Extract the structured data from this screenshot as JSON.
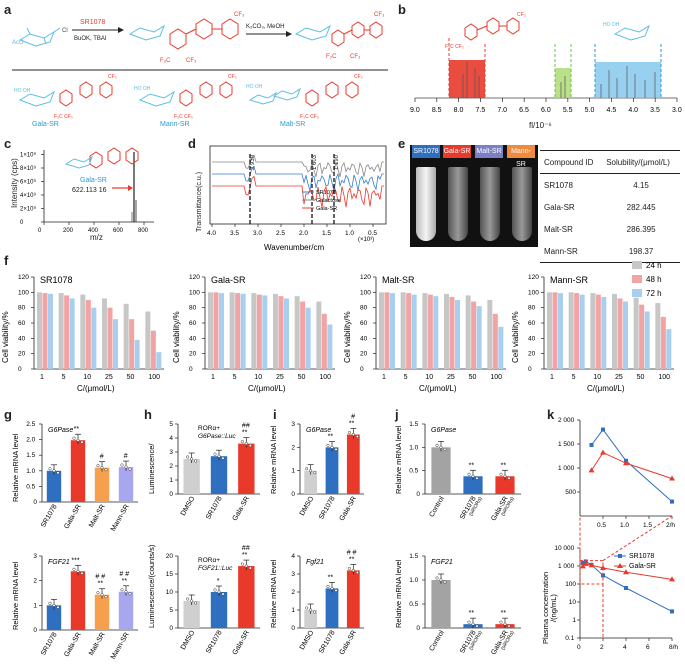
{
  "panels": {
    "a": "a",
    "b": "b",
    "c": "c",
    "d": "d",
    "e": "e",
    "f": "f",
    "g": "g",
    "h": "h",
    "i": "i",
    "j": "j",
    "k": "k"
  },
  "panel_a": {
    "reagent_top": "SR1078",
    "reagent_bottom": "BuOK, TBAI",
    "reagent2": "K₂CO₃, MeOH",
    "compounds": [
      "Gala-SR",
      "Mann-SR",
      "Malt-SR"
    ]
  },
  "panel_b": {
    "type": "nmr",
    "xlabel": "fl/10⁻⁶",
    "ticks": [
      "9.0",
      "8.5",
      "8.0",
      "7.5",
      "7.0",
      "6.5",
      "6.0",
      "5.5",
      "5.0",
      "4.5",
      "4.0",
      "3.5",
      "3.0"
    ]
  },
  "panel_c": {
    "ylabel": "Intensity (cps)",
    "xlabel": "m/z",
    "yticks": [
      "0",
      "2×10⁹",
      "4×10⁹",
      "6×10⁹",
      "8×10⁹",
      "1×10⁹"
    ],
    "xticks": [
      "0",
      "200",
      "400",
      "600",
      "800"
    ],
    "compound": "Gala-SR",
    "peak_label": "622.113 16"
  },
  "panel_d": {
    "ylabel": "Transmittance(c.u.)",
    "xlabel": "Wavenumber/cm",
    "xticks": [
      "4.0",
      "3.5",
      "3.0",
      "2.5",
      "2.0",
      "1.5",
      "1.0",
      "0.5"
    ],
    "xunit": "(×10³)",
    "peaks": [
      "2 930",
      "1 603",
      "1 190"
    ],
    "legend": [
      "SR1078",
      "Galactose",
      "Gala-SR"
    ],
    "colors": {
      "SR1078": "#3a7bc8",
      "Galactose": "#888888",
      "Gala-SR": "#e8392b"
    }
  },
  "panel_e": {
    "tube_labels": [
      "SR1078",
      "Gala-SR",
      "Malt-SR",
      "Mann-SR"
    ],
    "tube_colors": [
      "#2f6fc0",
      "#e8392b",
      "#7b7fc4",
      "#f08a3c"
    ],
    "table_header": [
      "Compound ID",
      "Solubility/(μmol/L)"
    ],
    "table_rows": [
      [
        "SR1078",
        "4.15"
      ],
      [
        "Gala-SR",
        "282.445"
      ],
      [
        "Malt-SR",
        "286.395"
      ],
      [
        "Mann-SR",
        "198.37"
      ]
    ]
  },
  "panel_f": {
    "ylabel": "Cell viability/%",
    "xlabel": "C/(μmol/L)",
    "categories": [
      "1",
      "5",
      "10",
      "25",
      "50",
      "100"
    ],
    "yticks": [
      "0",
      "20",
      "40",
      "60",
      "80",
      "100",
      "120"
    ],
    "legend": [
      "24 h",
      "48 h",
      "72 h"
    ],
    "colors": [
      "#c7c7c7",
      "#f2a3a3",
      "#a9cff0"
    ],
    "charts": [
      {
        "title": "SR1078",
        "series": [
          [
            100,
            99,
            97,
            92,
            85,
            75
          ],
          [
            99,
            96,
            90,
            80,
            65,
            50
          ],
          [
            98,
            92,
            80,
            65,
            38,
            22
          ]
        ]
      },
      {
        "title": "Gala-SR",
        "series": [
          [
            100,
            100,
            99,
            98,
            95,
            88
          ],
          [
            100,
            99,
            97,
            95,
            88,
            72
          ],
          [
            99,
            98,
            96,
            92,
            80,
            58
          ]
        ]
      },
      {
        "title": "Malt-SR",
        "series": [
          [
            100,
            100,
            99,
            98,
            96,
            90
          ],
          [
            100,
            99,
            97,
            94,
            88,
            72
          ],
          [
            99,
            97,
            95,
            90,
            82,
            55
          ]
        ]
      },
      {
        "title": "Mann-SR",
        "series": [
          [
            100,
            100,
            99,
            98,
            93,
            86
          ],
          [
            100,
            99,
            97,
            92,
            84,
            68
          ],
          [
            99,
            97,
            94,
            88,
            75,
            52
          ]
        ]
      }
    ]
  },
  "panel_g": {
    "ylabel": "Relative mRNA level",
    "categories": [
      "SR1078",
      "Gala-SR",
      "Malt-SR",
      "Mann-SR"
    ],
    "colors": [
      "#2f6fc0",
      "#e8392b",
      "#f6a04d",
      "#a9a6f0"
    ],
    "top": {
      "gene": "G6Pase",
      "ylim": [
        0,
        2.5
      ],
      "yticks": [
        "0",
        "0.5",
        "1.0",
        "1.5",
        "2.0",
        "2.5"
      ],
      "values": [
        1.0,
        1.98,
        1.1,
        1.12
      ],
      "sig": [
        "",
        "**",
        "#",
        "#"
      ]
    },
    "bottom": {
      "gene": "FGF21",
      "ylim": [
        0,
        3
      ],
      "yticks": [
        "0",
        "1",
        "2",
        "3"
      ],
      "values": [
        1.0,
        2.38,
        1.43,
        1.55
      ],
      "sig": [
        "",
        "***",
        "# #\n**",
        "# #\n**"
      ]
    }
  },
  "panel_h": {
    "ylabel_top": "Luminescence/\n(counts/s)",
    "ylabel_bottom": "Luminescence/(counts/s)",
    "categories": [
      "DMSO",
      "SR1078",
      "Gala-SR"
    ],
    "colors": [
      "#cfcfcf",
      "#2f6fc0",
      "#e8392b"
    ],
    "top": {
      "label1": "RORα+",
      "label2": "G6Pase::Luc",
      "ylim": [
        0,
        5
      ],
      "yticks": [
        "0",
        "1",
        "2",
        "3",
        "4",
        "5"
      ],
      "values": [
        2.5,
        2.7,
        3.6
      ],
      "sig": [
        "",
        "",
        "##\n**"
      ]
    },
    "bottom": {
      "label1": "RORα+",
      "label2": "FGF21::Luc",
      "ylim": [
        0,
        20
      ],
      "yticks": [
        "0",
        "5",
        "10",
        "15",
        "20"
      ],
      "values": [
        7.5,
        10.0,
        17.2
      ],
      "sig": [
        "",
        "*",
        "##\n**"
      ]
    }
  },
  "panel_i": {
    "ylabel": "Relative mRNA level",
    "categories": [
      "DMSO",
      "SR1078",
      "Gala-SR"
    ],
    "colors": [
      "#cfcfcf",
      "#2f6fc0",
      "#e8392b"
    ],
    "top": {
      "gene": "G6Pase",
      "ylim": [
        0,
        3
      ],
      "yticks": [
        "0",
        "1",
        "2",
        "3"
      ],
      "values": [
        1.0,
        2.0,
        2.55
      ],
      "sig": [
        "",
        "**",
        "#\n**"
      ]
    },
    "bottom": {
      "gene": "Fgf21",
      "ylim": [
        0,
        4
      ],
      "yticks": [
        "0",
        "1",
        "2",
        "3",
        "4"
      ],
      "values": [
        1.0,
        2.2,
        3.2
      ],
      "sig": [
        "",
        "**",
        "# #\n**"
      ]
    }
  },
  "panel_j": {
    "ylabel": "Relative mRNA level",
    "categories": [
      "Control",
      "SR1078\n(siRORα)",
      "Gala-SR\n(siRORα)"
    ],
    "colors": [
      "#a3a3a3",
      "#2f6fc0",
      "#e8392b"
    ],
    "top": {
      "gene": "G6Pase",
      "ylim": [
        0,
        1.5
      ],
      "yticks": [
        "0",
        "0.5",
        "1.0",
        "1.5"
      ],
      "values": [
        1.0,
        0.38,
        0.38
      ],
      "sig": [
        "",
        "**",
        "**"
      ]
    },
    "bottom": {
      "gene": "FGF21",
      "ylim": [
        0,
        1.5
      ],
      "yticks": [
        "0",
        "0.5",
        "1.0",
        "1.5"
      ],
      "values": [
        1.0,
        0.08,
        0.08
      ],
      "sig": [
        "",
        "**",
        "**"
      ]
    }
  },
  "panel_k": {
    "ylabel": "Plasma concentration\n/(ng/mL)",
    "xlabel_top": "2/h",
    "xlabel_bottom": "8/h",
    "legend": [
      "SR1078",
      "Gala-SR"
    ],
    "colors": [
      "#2f6fc0",
      "#e8392b"
    ],
    "top_xticks": [
      "0.5",
      "1.0",
      "1.5",
      "2/h"
    ],
    "top_yticks": [
      "500",
      "1 000",
      "1 500",
      "2 000"
    ],
    "bottom_xticks": [
      "0",
      "2",
      "4",
      "6",
      "8/h"
    ],
    "bottom_yticks": [
      "0.1",
      "1",
      "10",
      "100",
      "1 000",
      "10 000"
    ],
    "top_series": [
      {
        "name": "SR1078",
        "x": [
          0.25,
          0.5,
          1.0,
          2.0
        ],
        "y": [
          1480,
          1800,
          1150,
          300
        ]
      },
      {
        "name": "Gala-SR",
        "x": [
          0.25,
          0.5,
          1.0,
          2.0
        ],
        "y": [
          950,
          1320,
          1100,
          780
        ]
      }
    ],
    "bottom_series": [
      {
        "name": "SR1078",
        "x": [
          0.25,
          0.5,
          1,
          2,
          4,
          8
        ],
        "y": [
          1480,
          1800,
          1150,
          300,
          60,
          3
        ]
      },
      {
        "name": "Gala-SR",
        "x": [
          0.25,
          0.5,
          1,
          2,
          4,
          8
        ],
        "y": [
          950,
          1320,
          1100,
          780,
          450,
          180
        ]
      }
    ]
  }
}
